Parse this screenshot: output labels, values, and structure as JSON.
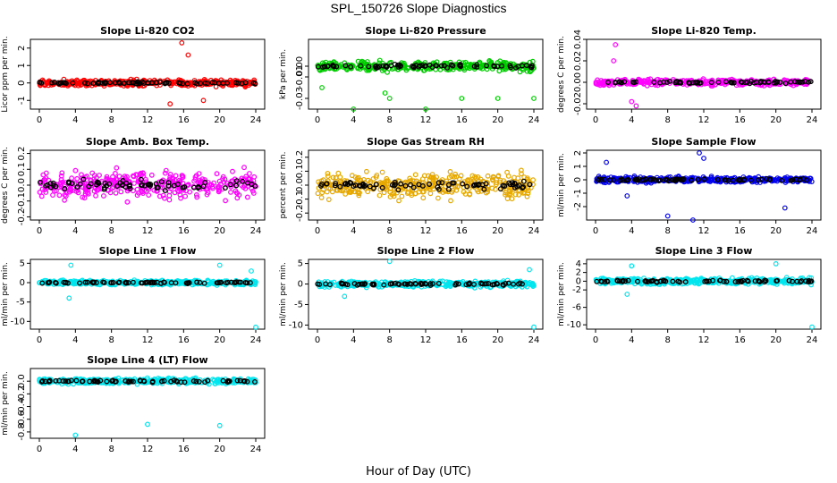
{
  "title": "SPL_150726 Slope Diagnostics",
  "xlabel": "Hour of Day (UTC)",
  "chart_data": [
    {
      "type": "scatter",
      "title": "Slope Li-820 CO2",
      "ylabel": "Licor ppm per min.",
      "color": "#ff0000",
      "xlim": [
        0,
        24
      ],
      "ylim": [
        -1.5,
        2.5
      ],
      "yticks": [
        -1,
        0,
        1,
        2
      ],
      "ytick_labels": [
        "-1",
        "0",
        "1",
        "2"
      ],
      "xticks": [
        0,
        4,
        8,
        12,
        16,
        20,
        24
      ],
      "ytick_rotate": true,
      "spread": 0.25,
      "outliers": [
        [
          15.8,
          2.3
        ],
        [
          14.5,
          -1.2
        ],
        [
          16.5,
          1.6
        ],
        [
          18.2,
          -1.0
        ]
      ]
    },
    {
      "type": "scatter",
      "title": "Slope Li-820 Pressure",
      "ylabel": "kPa per min.",
      "color": "#00cc00",
      "xlim": [
        0,
        24
      ],
      "ylim": [
        -0.04,
        0.025
      ],
      "yticks": [
        -0.03,
        -0.01,
        0.0
      ],
      "ytick_labels": [
        "-0.03",
        "-0.01",
        "0.00"
      ],
      "xticks": [
        0,
        4,
        8,
        12,
        16,
        20,
        24
      ],
      "ytick_rotate": true,
      "spread": 0.006,
      "outliers": [
        [
          4,
          -0.04
        ],
        [
          8,
          -0.03
        ],
        [
          12,
          -0.04
        ],
        [
          16,
          -0.03
        ],
        [
          20,
          -0.03
        ],
        [
          24,
          -0.03
        ],
        [
          0.5,
          -0.02
        ],
        [
          7.5,
          -0.025
        ]
      ]
    },
    {
      "type": "scatter",
      "title": "Slope Li-820 Temp.",
      "ylabel": "degrees C per min.",
      "color": "#ff00ff",
      "xlim": [
        0,
        24
      ],
      "ylim": [
        -0.025,
        0.04
      ],
      "yticks": [
        -0.02,
        0.0,
        0.02,
        0.04
      ],
      "ytick_labels": [
        "-0.02",
        "0.00",
        "0.02",
        "0.04"
      ],
      "xticks": [
        0,
        4,
        8,
        12,
        16,
        20,
        24
      ],
      "ytick_rotate": true,
      "spread": 0.004,
      "outliers": [
        [
          2.2,
          0.035
        ],
        [
          2.0,
          0.02
        ],
        [
          4.5,
          -0.022
        ],
        [
          4.0,
          -0.018
        ]
      ]
    },
    {
      "type": "scatter",
      "title": "Slope Amb. Box Temp.",
      "ylabel": "degrees C per min.",
      "color": "#ff00ff",
      "xlim": [
        0,
        24
      ],
      "ylim": [
        -0.22,
        0.22
      ],
      "yticks": [
        -0.2,
        -0.1,
        0.0,
        0.1,
        0.2
      ],
      "ytick_labels": [
        "-0.2",
        "-0.1",
        "0.0",
        "0.1",
        "0.2"
      ],
      "xticks": [
        0,
        4,
        8,
        12,
        16,
        20,
        24
      ],
      "ytick_rotate": true,
      "spread": 0.12,
      "outliers": []
    },
    {
      "type": "scatter",
      "title": "Slope Gas Stream RH",
      "ylabel": "percent per min.",
      "color": "#e6a800",
      "xlim": [
        0,
        24
      ],
      "ylim": [
        -0.25,
        0.25
      ],
      "yticks": [
        -0.2,
        -0.1,
        0.0,
        0.1,
        0.2
      ],
      "ytick_labels": [
        "-0.2",
        "-0.1",
        "0.0",
        "0.1",
        "0.2"
      ],
      "xticks": [
        0,
        4,
        8,
        12,
        16,
        20,
        24
      ],
      "ytick_rotate": true,
      "spread": 0.12,
      "outliers": []
    },
    {
      "type": "scatter",
      "title": "Slope Sample Flow",
      "ylabel": "ml/min per min.",
      "color": "#0000ee",
      "xlim": [
        0,
        24
      ],
      "ylim": [
        -3,
        2.2
      ],
      "yticks": [
        -2,
        -1,
        0,
        1,
        2
      ],
      "ytick_labels": [
        "-2",
        "-1",
        "0",
        "1",
        "2"
      ],
      "xticks": [
        0,
        4,
        8,
        12,
        16,
        20,
        24
      ],
      "ytick_rotate": true,
      "spread": 0.3,
      "outliers": [
        [
          8,
          -2.7
        ],
        [
          10.8,
          -3
        ],
        [
          11.5,
          2
        ],
        [
          12,
          1.6
        ],
        [
          1.2,
          1.3
        ],
        [
          21,
          -2.1
        ],
        [
          3.5,
          -1.2
        ]
      ]
    },
    {
      "type": "scatter",
      "title": "Slope Line 1 Flow",
      "ylabel": "ml/min per min.",
      "color": "#00e5ee",
      "xlim": [
        0,
        24
      ],
      "ylim": [
        -12,
        6
      ],
      "yticks": [
        -10,
        -5,
        0,
        5
      ],
      "ytick_labels": [
        "-10",
        "-5",
        "0",
        "5"
      ],
      "xticks": [
        0,
        4,
        8,
        12,
        16,
        20,
        24
      ],
      "ytick_rotate": false,
      "spread": 0.8,
      "outliers": [
        [
          24,
          -11.5
        ],
        [
          3.3,
          -4
        ],
        [
          3.5,
          4.5
        ],
        [
          20,
          4.5
        ],
        [
          23.5,
          3
        ]
      ]
    },
    {
      "type": "scatter",
      "title": "Slope Line 2 Flow",
      "ylabel": "ml/min per min.",
      "color": "#00e5ee",
      "xlim": [
        0,
        24
      ],
      "ylim": [
        -11,
        6
      ],
      "yticks": [
        -10,
        -5,
        0,
        5
      ],
      "ytick_labels": [
        "-10",
        "-5",
        "0",
        "5"
      ],
      "xticks": [
        0,
        4,
        8,
        12,
        16,
        20,
        24
      ],
      "ytick_rotate": false,
      "spread": 1.0,
      "outliers": [
        [
          24,
          -10.5
        ],
        [
          8,
          5.5
        ],
        [
          3,
          -3
        ],
        [
          23.5,
          3.5
        ]
      ]
    },
    {
      "type": "scatter",
      "title": "Slope Line 3 Flow",
      "ylabel": "ml/min per min.",
      "color": "#00e5ee",
      "xlim": [
        0,
        24
      ],
      "ylim": [
        -11,
        5
      ],
      "yticks": [
        -10,
        -6,
        -2,
        0,
        2,
        4
      ],
      "ytick_labels": [
        "-10",
        "-6",
        "-2",
        "0",
        "2",
        "4"
      ],
      "xticks": [
        0,
        4,
        8,
        12,
        16,
        20,
        24
      ],
      "ytick_rotate": false,
      "spread": 1.0,
      "outliers": [
        [
          24,
          -10.5
        ],
        [
          20,
          4
        ],
        [
          3.5,
          -3
        ],
        [
          4,
          3.5
        ]
      ]
    },
    {
      "type": "scatter",
      "title": "Slope Line 4 (LT) Flow",
      "ylabel": "ml/min per min.",
      "color": "#00e5ee",
      "xlim": [
        0,
        24
      ],
      "ylim": [
        -0.9,
        0.2
      ],
      "yticks": [
        -0.8,
        -0.6,
        -0.4,
        -0.2,
        0.0
      ],
      "ytick_labels": [
        "-0.8",
        "-0.6",
        "-0.4",
        "-0.2",
        "0.0"
      ],
      "xticks": [
        0,
        4,
        8,
        12,
        16,
        20,
        24
      ],
      "ytick_rotate": true,
      "spread": 0.06,
      "outliers": [
        [
          4,
          -0.85
        ],
        [
          12,
          -0.68
        ],
        [
          20,
          -0.7
        ]
      ]
    }
  ]
}
